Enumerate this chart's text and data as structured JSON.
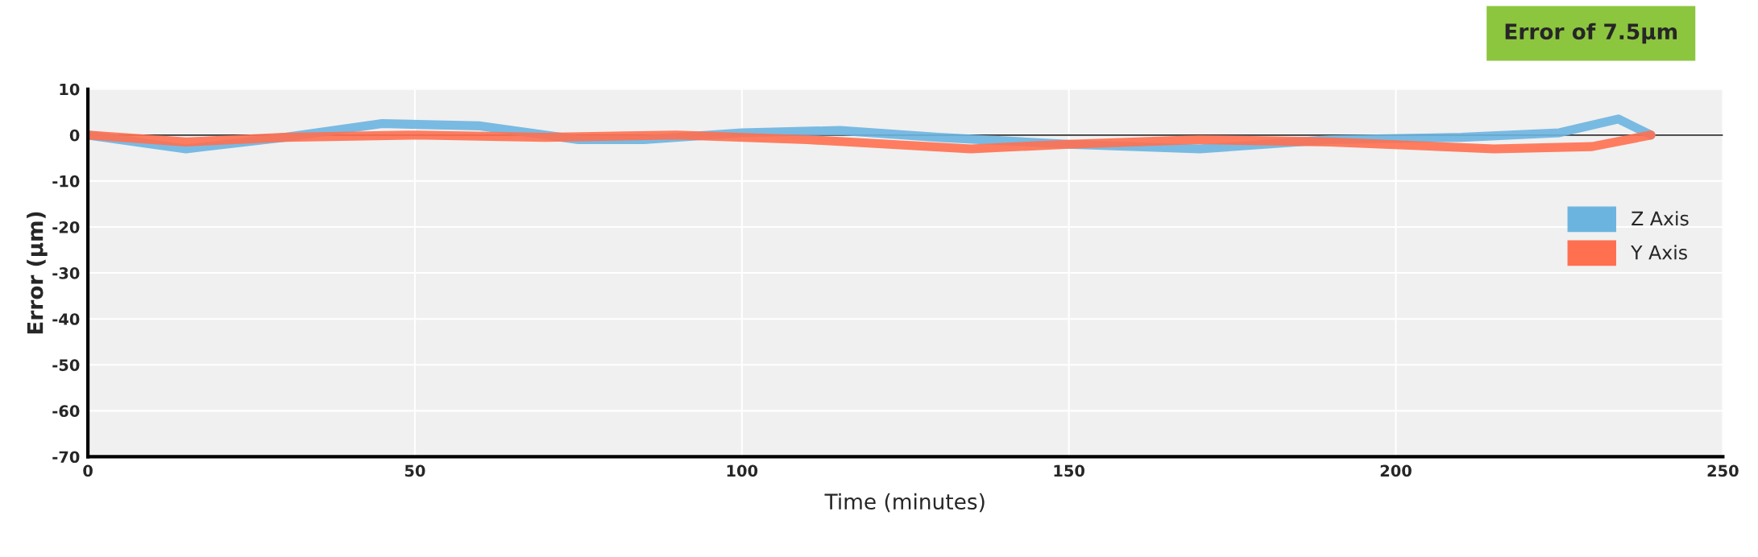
{
  "chart_data": {
    "type": "line",
    "xlabel": "Time (minutes)",
    "ylabel": "Error (µm)",
    "annotations": [
      "Error of 7.5µm"
    ],
    "series": [
      {
        "name": "Z Axis",
        "color": "#6cb4e0",
        "x": [
          0,
          15,
          30,
          45,
          60,
          75,
          85,
          100,
          115,
          130,
          150,
          170,
          190,
          210,
          225,
          234,
          239
        ],
        "values": [
          0,
          -3,
          -0.5,
          2.5,
          2,
          -1,
          -1,
          0.5,
          1,
          -0.5,
          -2,
          -3,
          -1,
          -0.5,
          0.5,
          3.5,
          0
        ]
      },
      {
        "name": "Y Axis",
        "color": "#ff7050",
        "x": [
          0,
          15,
          30,
          50,
          70,
          90,
          110,
          135,
          150,
          170,
          190,
          215,
          230,
          239
        ],
        "values": [
          0,
          -1.5,
          -0.5,
          0,
          -0.5,
          0,
          -1,
          -3,
          -2,
          -1,
          -1.5,
          -3,
          -2.5,
          0
        ]
      }
    ],
    "ref_lines": [
      {
        "axis": "y",
        "value": 0,
        "color": "#333333"
      }
    ],
    "xlim": [
      0,
      250
    ],
    "xticks": [
      0,
      50,
      100,
      150,
      200,
      250
    ],
    "ylim": [
      -70,
      10
    ],
    "yticks": [
      -70,
      -60,
      -50,
      -40,
      -30,
      -20,
      -10,
      0,
      10
    ],
    "grid": true,
    "legend": "right",
    "line_style": "solid"
  }
}
